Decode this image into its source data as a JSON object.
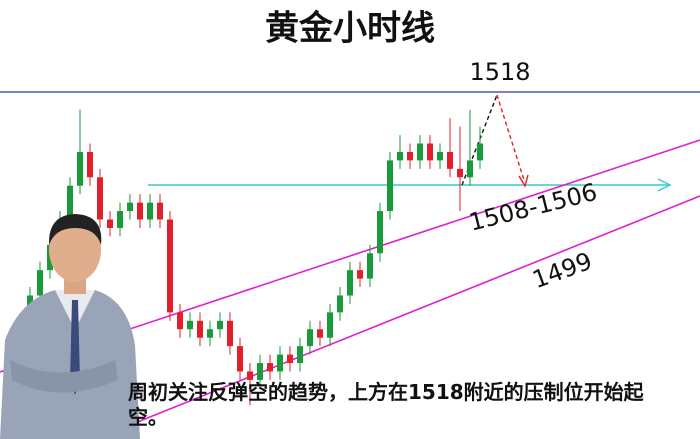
{
  "chart_data": {
    "type": "candlestick",
    "title": "黄金小时线",
    "ylim": [
      1477,
      1529
    ],
    "up_color": "#1a9a3a",
    "down_color": "#e0202a",
    "open": [
      1485,
      1487,
      1490,
      1494,
      1497,
      1500,
      1503,
      1507,
      1511,
      1508,
      1503,
      1502,
      1504,
      1505,
      1503,
      1505,
      1503,
      1492,
      1490,
      1491,
      1489,
      1490,
      1491,
      1488,
      1485,
      1484,
      1486,
      1485,
      1487,
      1486,
      1488,
      1490,
      1489,
      1492,
      1494,
      1497,
      1496,
      1499,
      1504,
      1510,
      1511,
      1510,
      1512,
      1510,
      1511,
      1509,
      1508,
      1510
    ],
    "high": [
      1488,
      1491,
      1495,
      1498,
      1501,
      1504,
      1508,
      1516,
      1512,
      1509,
      1504,
      1505,
      1506,
      1506,
      1506,
      1506,
      1504,
      1493,
      1492,
      1492,
      1491,
      1492,
      1492,
      1489,
      1486,
      1487,
      1487,
      1488,
      1488,
      1489,
      1491,
      1491,
      1493,
      1495,
      1498,
      1498,
      1500,
      1505,
      1511,
      1513,
      1512,
      1513,
      1513,
      1512,
      1515,
      1514,
      1516,
      1514
    ],
    "low": [
      1484,
      1486,
      1489,
      1493,
      1496,
      1499,
      1502,
      1506,
      1507,
      1502,
      1501,
      1501,
      1503,
      1502,
      1502,
      1502,
      1491,
      1489,
      1489,
      1488,
      1488,
      1489,
      1487,
      1484,
      1481,
      1483,
      1484,
      1484,
      1485,
      1485,
      1487,
      1488,
      1488,
      1491,
      1493,
      1495,
      1495,
      1498,
      1503,
      1509,
      1509,
      1509,
      1509,
      1509,
      1508,
      1504,
      1507,
      1509
    ],
    "close": [
      1487,
      1490,
      1494,
      1497,
      1500,
      1503,
      1507,
      1511,
      1508,
      1503,
      1502,
      1504,
      1505,
      1503,
      1505,
      1503,
      1492,
      1490,
      1491,
      1489,
      1490,
      1491,
      1488,
      1485,
      1484,
      1486,
      1485,
      1487,
      1486,
      1488,
      1490,
      1489,
      1492,
      1494,
      1497,
      1496,
      1499,
      1504,
      1510,
      1511,
      1510,
      1512,
      1510,
      1511,
      1509,
      1508,
      1510,
      1512
    ],
    "annotations": [
      "1518",
      "1508-1506",
      "1499"
    ],
    "note": "周初关注反弹空的趋势，上方在1518附近的压制位开始起空。"
  }
}
